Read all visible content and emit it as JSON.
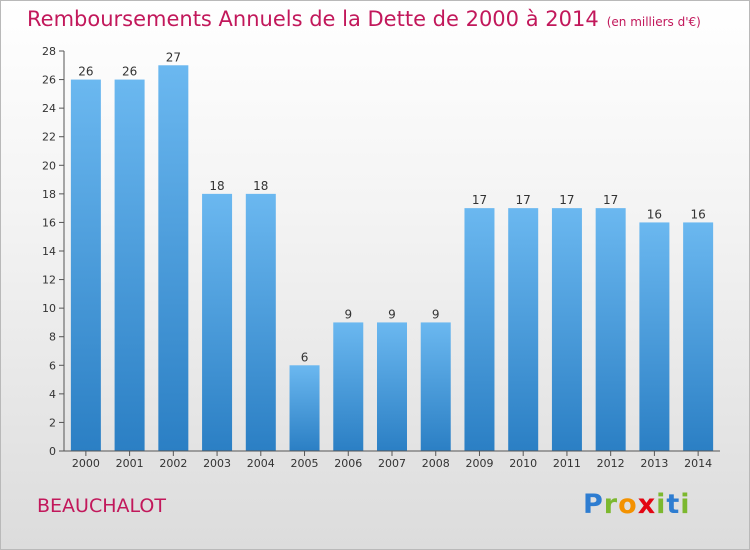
{
  "chart_data": {
    "type": "bar",
    "title": "Remboursements Annuels de la Dette de 2000 à 2014",
    "unit_label": "(en milliers d'€)",
    "categories": [
      "2000",
      "2001",
      "2002",
      "2003",
      "2004",
      "2005",
      "2006",
      "2007",
      "2008",
      "2009",
      "2010",
      "2011",
      "2012",
      "2013",
      "2014"
    ],
    "values": [
      26,
      26,
      27,
      18,
      18,
      6,
      9,
      9,
      9,
      17,
      17,
      17,
      17,
      16,
      16
    ],
    "ylim": [
      0,
      28
    ],
    "yticks": [
      0,
      2,
      4,
      6,
      8,
      10,
      12,
      14,
      16,
      18,
      20,
      22,
      24,
      26,
      28
    ],
    "grid": false,
    "bar_color_top": "#6bb8f0",
    "bar_color_bottom": "#2b7fc4",
    "label_color": "#333333"
  },
  "footer": {
    "town": "BEAUCHALOT",
    "logo": {
      "letters": [
        "P",
        "r",
        "o",
        "x",
        "i",
        "t",
        "i"
      ],
      "colors": [
        "#2e7dd1",
        "#7cb82f",
        "#f39200",
        "#e30613",
        "#7cb82f",
        "#2e7dd1",
        "#7cb82f"
      ]
    }
  },
  "colors": {
    "title": "#c2185b",
    "axis": "#555555"
  }
}
